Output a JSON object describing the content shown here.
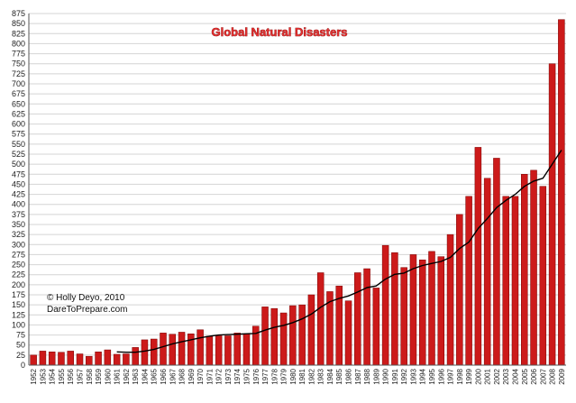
{
  "chart_data": {
    "type": "bar",
    "title": "Global Natural Disasters",
    "credit_lines": [
      "© Holly Deyo, 2010",
      "DareToPrepare.com"
    ],
    "bar_color": "#cc1a1a",
    "trend_color": "#000000",
    "xlabel": "",
    "ylabel": "",
    "ylim": [
      0,
      875
    ],
    "ytick_step": 25,
    "grid": true,
    "categories": [
      "1952",
      "1953",
      "1954",
      "1955",
      "1956",
      "1957",
      "1958",
      "1959",
      "1960",
      "1961",
      "1962",
      "1963",
      "1964",
      "1965",
      "1966",
      "1967",
      "1968",
      "1969",
      "1970",
      "1971",
      "1972",
      "1973",
      "1974",
      "1975",
      "1976",
      "1977",
      "1978",
      "1979",
      "1980",
      "1981",
      "1982",
      "1983",
      "1984",
      "1985",
      "1986",
      "1987",
      "1988",
      "1989",
      "1990",
      "1991",
      "1992",
      "1993",
      "1994",
      "1995",
      "1996",
      "1997",
      "1998",
      "1999",
      "2000",
      "2001",
      "2002",
      "2003",
      "2004",
      "2005",
      "2006",
      "2007",
      "2008",
      "2009"
    ],
    "series": [
      {
        "name": "Natural disasters",
        "kind": "bar",
        "values": [
          25,
          35,
          33,
          32,
          35,
          28,
          22,
          33,
          38,
          27,
          28,
          44,
          63,
          65,
          80,
          77,
          82,
          78,
          88,
          72,
          73,
          73,
          80,
          78,
          97,
          145,
          141,
          130,
          148,
          150,
          175,
          230,
          183,
          197,
          160,
          230,
          240,
          192,
          298,
          280,
          243,
          275,
          262,
          283,
          270,
          325,
          375,
          420,
          542,
          465,
          515,
          420,
          420,
          475,
          485,
          445,
          750,
          860
        ]
      },
      {
        "name": "Trend",
        "kind": "line",
        "values": [
          null,
          null,
          null,
          null,
          null,
          null,
          null,
          null,
          null,
          33,
          32,
          32,
          35,
          39,
          46,
          53,
          58,
          63,
          68,
          72,
          75,
          76,
          77,
          78,
          79,
          87,
          94,
          99,
          106,
          115,
          127,
          144,
          158,
          166,
          172,
          182,
          193,
          197,
          214,
          226,
          229,
          240,
          248,
          253,
          258,
          268,
          290,
          306,
          340,
          365,
          392,
          410,
          425,
          445,
          458,
          465,
          500,
          535
        ]
      }
    ]
  }
}
